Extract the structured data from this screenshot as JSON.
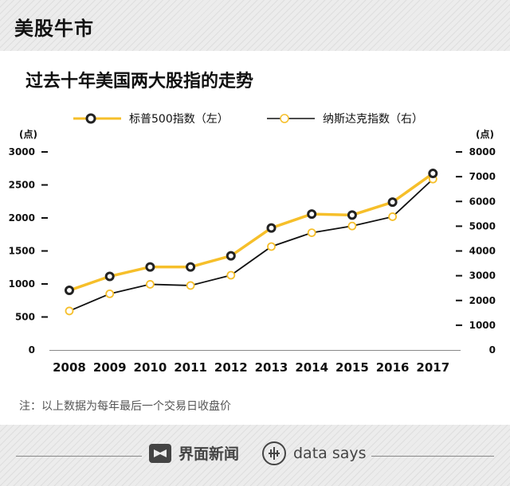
{
  "header": {
    "brand": "美股牛市"
  },
  "title": "过去十年美国两大股指的走势",
  "axis_units": {
    "left": "(点)",
    "right": "(点)"
  },
  "legend": [
    {
      "label": "标普500指数（左）",
      "color": "#f6bf2a",
      "marker": "dark"
    },
    {
      "label": "纳斯达克指数（右）",
      "color": "#111111",
      "marker": "light"
    }
  ],
  "note": "注：以上数据为每年最后一个交易日收盘价",
  "footer": {
    "logo1": "界面新闻",
    "logo2": "data says"
  },
  "chart_data": {
    "type": "line",
    "categories": [
      "2008",
      "2009",
      "2010",
      "2011",
      "2012",
      "2013",
      "2014",
      "2015",
      "2016",
      "2017"
    ],
    "series": [
      {
        "name": "标普500指数（左）",
        "axis": "left",
        "color": "#f6bf2a",
        "values": [
          903,
          1115,
          1258,
          1258,
          1426,
          1848,
          2059,
          2044,
          2239,
          2674
        ]
      },
      {
        "name": "纳斯达克指数（右）",
        "axis": "right",
        "color": "#111111",
        "values": [
          1577,
          2269,
          2653,
          2605,
          3020,
          4177,
          4736,
          5007,
          5383,
          6903
        ]
      }
    ],
    "left_axis": {
      "min": 0,
      "max": 3000,
      "ticks": [
        0,
        500,
        1000,
        1500,
        2000,
        2500,
        3000
      ]
    },
    "right_axis": {
      "min": 0,
      "max": 8000,
      "ticks": [
        0,
        1000,
        2000,
        3000,
        4000,
        5000,
        6000,
        7000,
        8000
      ]
    },
    "grid": false
  }
}
